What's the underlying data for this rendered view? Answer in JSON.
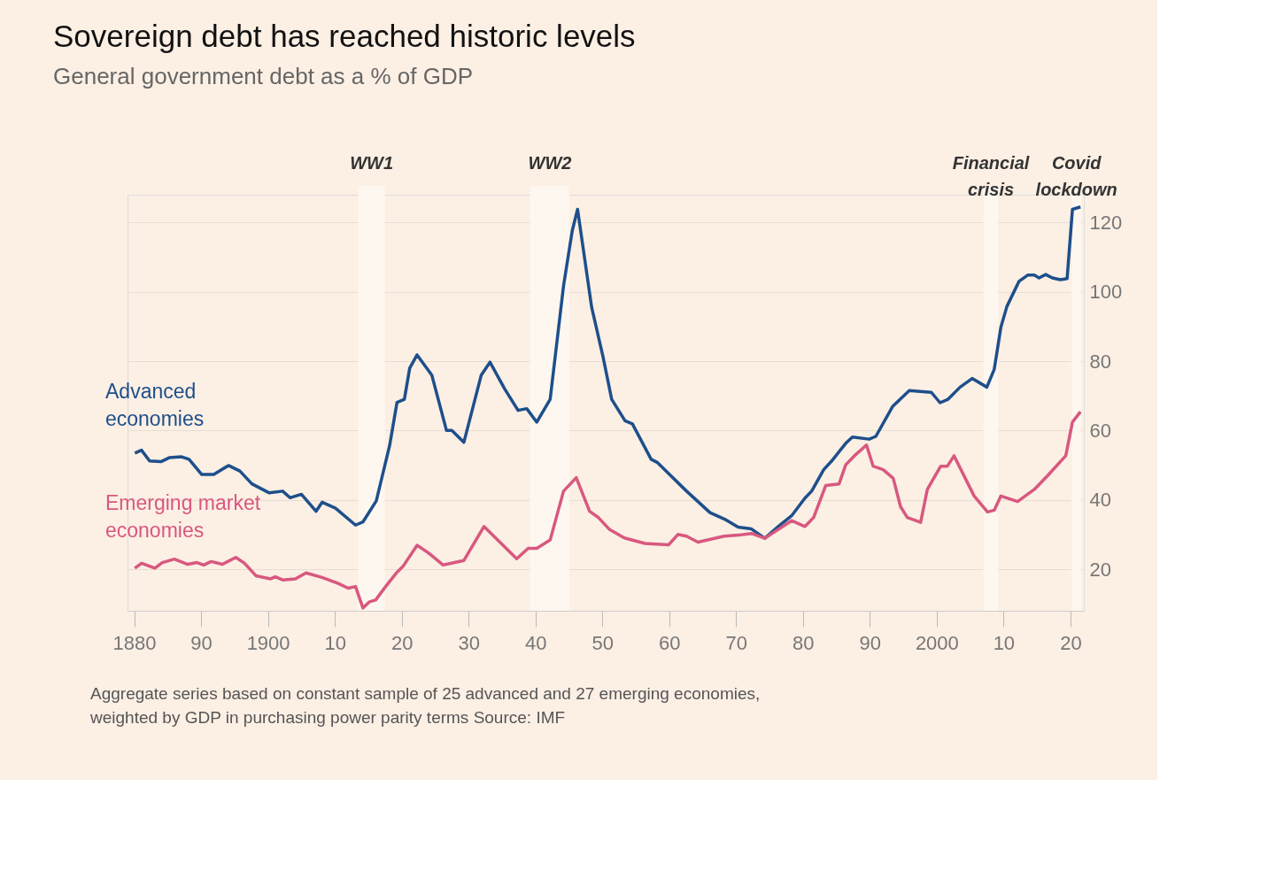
{
  "chart_data": {
    "type": "line",
    "title": "Sovereign debt has reached historic levels",
    "subtitle": "General government debt as a % of GDP",
    "annotations": [
      "Aggregate series based on constant sample of 25 advanced and 27 emerging economies, weighted by GDP in purchasing power parity terms   Source: IMF"
    ],
    "xlim": [
      1879,
      2022
    ],
    "xticks": [
      1880,
      {
        "value": 1890,
        "label": "90"
      },
      1900,
      {
        "value": 1910,
        "label": "10"
      },
      {
        "value": 1920,
        "label": "20"
      },
      {
        "value": 1930,
        "label": "30"
      },
      {
        "value": 1940,
        "label": "40"
      },
      {
        "value": 1950,
        "label": "50"
      },
      {
        "value": 1960,
        "label": "60"
      },
      {
        "value": 1970,
        "label": "70"
      },
      {
        "value": 1980,
        "label": "80"
      },
      {
        "value": 1990,
        "label": "90"
      },
      2000,
      {
        "value": 2010,
        "label": "10"
      },
      {
        "value": 2020,
        "label": "20"
      }
    ],
    "ylim": [
      8,
      128
    ],
    "yticks": [
      20,
      40,
      60,
      80,
      100,
      120
    ],
    "grid": "y",
    "line_style": "solid",
    "bands": [
      {
        "axis": "x",
        "from": 1913.5,
        "to": 1917.5,
        "label": "WW1",
        "color": "#fef7f0"
      },
      {
        "axis": "x",
        "from": 1939.2,
        "to": 1945.1,
        "label": "WW2",
        "color": "#fef7f0"
      },
      {
        "axis": "x",
        "from": 2007,
        "to": 2009.2,
        "label": "Financial crisis",
        "color": "#fef7f0"
      },
      {
        "axis": "x",
        "from": 2020.2,
        "to": 2021.6,
        "label": "Covid lockdown",
        "color": "#fef7f0"
      }
    ],
    "series": [
      {
        "name": "Advanced economies",
        "color": "#1d4f8b",
        "x": [
          1880.1,
          1881.1,
          1882.3,
          1884,
          1885.3,
          1887.1,
          1888.2,
          1890.1,
          1891.9,
          1894.1,
          1895.8,
          1897.6,
          1900.2,
          1902.2,
          1903.3,
          1905,
          1907.2,
          1908.1,
          1910.1,
          1913.1,
          1914.2,
          1916.2,
          1918.2,
          1919.3,
          1920.4,
          1921.2,
          1922.3,
          1924.5,
          1926.7,
          1927.5,
          1929.3,
          1931.9,
          1933.2,
          1935.4,
          1937.4,
          1938.7,
          1940.2,
          1942.2,
          1944.2,
          1945.5,
          1946.3,
          1948.4,
          1950.1,
          1951.4,
          1953.4,
          1954.5,
          1957.3,
          1958.2,
          1962.6,
          1966.1,
          1968.3,
          1970.3,
          1972.3,
          1974.3,
          1976.3,
          1978.3,
          1980.3,
          1981.3,
          1983.1,
          1984.3,
          1986.4,
          1987.4,
          1989.9,
          1990.9,
          1993.4,
          1995.9,
          1999.2,
          2000.5,
          2001.7,
          2003.5,
          2005.3,
          2007.5,
          2008.6,
          2009.6,
          2010.5,
          2012.3,
          2013.6,
          2014.6,
          2015.3,
          2016.3,
          2017.3,
          2018.5,
          2019.5,
          2020.3,
          2021.5
        ],
        "values": [
          53.5,
          54.3,
          51.2,
          51,
          52.2,
          52.4,
          51.7,
          47.3,
          47.3,
          49.9,
          48.3,
          44.6,
          42,
          42.5,
          40.6,
          41.6,
          36.7,
          39.3,
          37.6,
          32.7,
          33.6,
          39.7,
          55.7,
          68.1,
          69,
          78,
          81.8,
          76,
          60,
          60,
          56.6,
          76,
          79.7,
          72,
          65.8,
          66.3,
          62.4,
          69,
          101.7,
          117.6,
          123.8,
          95.6,
          81.3,
          69,
          62.8,
          61.9,
          51.7,
          50.8,
          42.5,
          36.3,
          34.4,
          32.1,
          31.6,
          28.9,
          32.3,
          35.4,
          40.5,
          42.5,
          48.7,
          51.2,
          56.3,
          58.1,
          57.5,
          58.3,
          66.9,
          71.5,
          71,
          68,
          69,
          72.5,
          75,
          72.5,
          77.6,
          89.8,
          95.8,
          103,
          104.8,
          104.8,
          104,
          105,
          104,
          103.5,
          103.8,
          123.8,
          124.5
        ]
      },
      {
        "name": "Emerging market economies",
        "color": "#d8587f",
        "x": [
          1880.1,
          1881.1,
          1883.1,
          1884.2,
          1886,
          1888,
          1889.4,
          1890.4,
          1891.5,
          1893.2,
          1895.2,
          1896.5,
          1898.2,
          1900.4,
          1901.1,
          1902.2,
          1904.1,
          1905.7,
          1908.1,
          1910.5,
          1912,
          1913.1,
          1914.2,
          1915.2,
          1916.1,
          1917.6,
          1919.2,
          1920.2,
          1922.3,
          1924,
          1926.2,
          1929.3,
          1932.3,
          1937.2,
          1938.9,
          1940.2,
          1942.2,
          1944.2,
          1946.1,
          1948.1,
          1949.4,
          1951.1,
          1953.3,
          1956.4,
          1959.9,
          1961.3,
          1962.6,
          1964.3,
          1968.2,
          1970.3,
          1972.3,
          1974.3,
          1978.3,
          1980.3,
          1981.6,
          1983.4,
          1985.4,
          1986.4,
          1987.7,
          1989.5,
          1990.5,
          1992,
          1993.5,
          1994.6,
          1995.6,
          1997.6,
          1998.6,
          2000.6,
          2001.6,
          2002.6,
          2005.6,
          2007.6,
          2008.6,
          2009.6,
          2012.1,
          2014.6,
          2016.6,
          2019.3,
          2020.3,
          2021.5
        ],
        "values": [
          20.3,
          21.7,
          20.3,
          21.9,
          22.9,
          21.4,
          21.9,
          21.2,
          22.2,
          21.4,
          23.4,
          21.7,
          18.1,
          17.2,
          17.8,
          16.9,
          17.2,
          18.9,
          17.6,
          15.9,
          14.5,
          15,
          8.8,
          10.6,
          11.1,
          15,
          18.9,
          20.8,
          26.9,
          24.7,
          21.2,
          22.5,
          32.3,
          23,
          26,
          26,
          28.4,
          42.5,
          46.4,
          36.7,
          34.9,
          31.4,
          29,
          27.4,
          27,
          30,
          29.5,
          27.8,
          29.5,
          29.8,
          30.3,
          28.9,
          34,
          32.3,
          34.9,
          44.1,
          44.6,
          50.1,
          52.7,
          55.8,
          49.7,
          48.7,
          46.2,
          38,
          34.9,
          33.5,
          43,
          49.7,
          49.7,
          52.7,
          41.1,
          36.5,
          37,
          41.1,
          39.5,
          43,
          47,
          52.7,
          62.4,
          65.4
        ]
      }
    ]
  }
}
